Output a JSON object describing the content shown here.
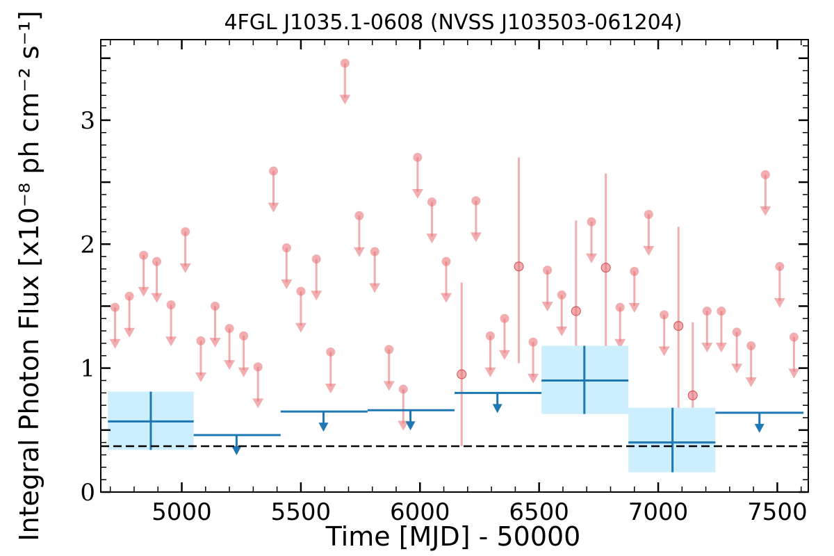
{
  "chart_data": {
    "type": "scatter",
    "title": "4FGL J1035.1-0608 (NVSS J103503-061204)",
    "xlabel": "Time [MJD] - 50000",
    "ylabel": "Integral Photon Flux [x10⁻⁸ ph cm⁻² s⁻¹]",
    "xlim": [
      4660,
      7630
    ],
    "ylim": [
      0,
      3.65
    ],
    "xticks": [
      5000,
      5500,
      6000,
      6500,
      7000,
      7500
    ],
    "yticks": [
      0,
      1,
      2,
      3
    ],
    "grid": false,
    "reference_line": {
      "y": 0.37,
      "style": "dashed"
    },
    "colors": {
      "bins": "#1f77b4",
      "bin_fill": "#cdeefc",
      "fine": "#e8767a",
      "reference": "#000000"
    },
    "series": [
      {
        "upper_limits": [
          {
            "x": 4720,
            "y": 1.49
          },
          {
            "x": 4780,
            "y": 1.58
          },
          {
            "x": 4840,
            "y": 1.91
          },
          {
            "x": 4895,
            "y": 1.86
          },
          {
            "x": 4955,
            "y": 1.51
          },
          {
            "x": 5015,
            "y": 2.1
          },
          {
            "x": 5080,
            "y": 1.22
          },
          {
            "x": 5140,
            "y": 1.5
          },
          {
            "x": 5200,
            "y": 1.32
          },
          {
            "x": 5260,
            "y": 1.26
          },
          {
            "x": 5320,
            "y": 1.01
          },
          {
            "x": 5385,
            "y": 2.59
          },
          {
            "x": 5440,
            "y": 1.97
          },
          {
            "x": 5500,
            "y": 1.62
          },
          {
            "x": 5565,
            "y": 1.88
          },
          {
            "x": 5625,
            "y": 1.13
          },
          {
            "x": 5685,
            "y": 3.46
          },
          {
            "x": 5745,
            "y": 2.23
          },
          {
            "x": 5810,
            "y": 1.94
          },
          {
            "x": 5870,
            "y": 1.15
          },
          {
            "x": 5930,
            "y": 0.83
          },
          {
            "x": 5990,
            "y": 2.7
          },
          {
            "x": 6050,
            "y": 2.34
          },
          {
            "x": 6110,
            "y": 1.86
          },
          {
            "x": 6235,
            "y": 2.35
          },
          {
            "x": 6295,
            "y": 1.26
          },
          {
            "x": 6355,
            "y": 1.4
          },
          {
            "x": 6475,
            "y": 1.21
          },
          {
            "x": 6535,
            "y": 1.79
          },
          {
            "x": 6595,
            "y": 1.59
          },
          {
            "x": 6720,
            "y": 2.18
          },
          {
            "x": 6840,
            "y": 1.49
          },
          {
            "x": 6900,
            "y": 1.78
          },
          {
            "x": 6960,
            "y": 2.24
          },
          {
            "x": 7025,
            "y": 1.43
          },
          {
            "x": 7205,
            "y": 1.46
          },
          {
            "x": 7265,
            "y": 1.46
          },
          {
            "x": 7330,
            "y": 1.29
          },
          {
            "x": 7390,
            "y": 1.18
          },
          {
            "x": 7450,
            "y": 2.56
          },
          {
            "x": 7510,
            "y": 1.82
          },
          {
            "x": 7570,
            "y": 1.25
          }
        ],
        "detections": [
          {
            "x": 6175,
            "y": 0.95,
            "lo": 0.37,
            "hi": 1.69
          },
          {
            "x": 6415,
            "y": 1.82,
            "lo": 1.04,
            "hi": 2.7
          },
          {
            "x": 6655,
            "y": 1.46,
            "lo": 0.83,
            "hi": 2.19
          },
          {
            "x": 6780,
            "y": 1.81,
            "lo": 1.13,
            "hi": 2.57
          },
          {
            "x": 7085,
            "y": 1.34,
            "lo": 0.64,
            "hi": 2.14
          },
          {
            "x": 7145,
            "y": 0.78,
            "lo": 0.31,
            "hi": 1.37
          }
        ]
      },
      {
        "detections": [
          {
            "x": 4870,
            "x0": 4690,
            "x1": 5050,
            "y": 0.57,
            "lo": 0.34,
            "hi": 0.81
          },
          {
            "x": 6690,
            "x0": 6510,
            "x1": 6875,
            "y": 0.9,
            "lo": 0.63,
            "hi": 1.18
          },
          {
            "x": 7060,
            "x0": 6875,
            "x1": 7240,
            "y": 0.4,
            "lo": 0.16,
            "hi": 0.68
          }
        ],
        "upper_limits": [
          {
            "x": 5230,
            "x0": 5050,
            "x1": 5415,
            "y": 0.46
          },
          {
            "x": 5595,
            "x0": 5415,
            "x1": 5780,
            "y": 0.65
          },
          {
            "x": 5960,
            "x0": 5780,
            "x1": 6145,
            "y": 0.66
          },
          {
            "x": 6325,
            "x0": 6145,
            "x1": 6510,
            "y": 0.8
          },
          {
            "x": 7425,
            "x0": 7240,
            "x1": 7610,
            "y": 0.64
          }
        ]
      }
    ]
  }
}
